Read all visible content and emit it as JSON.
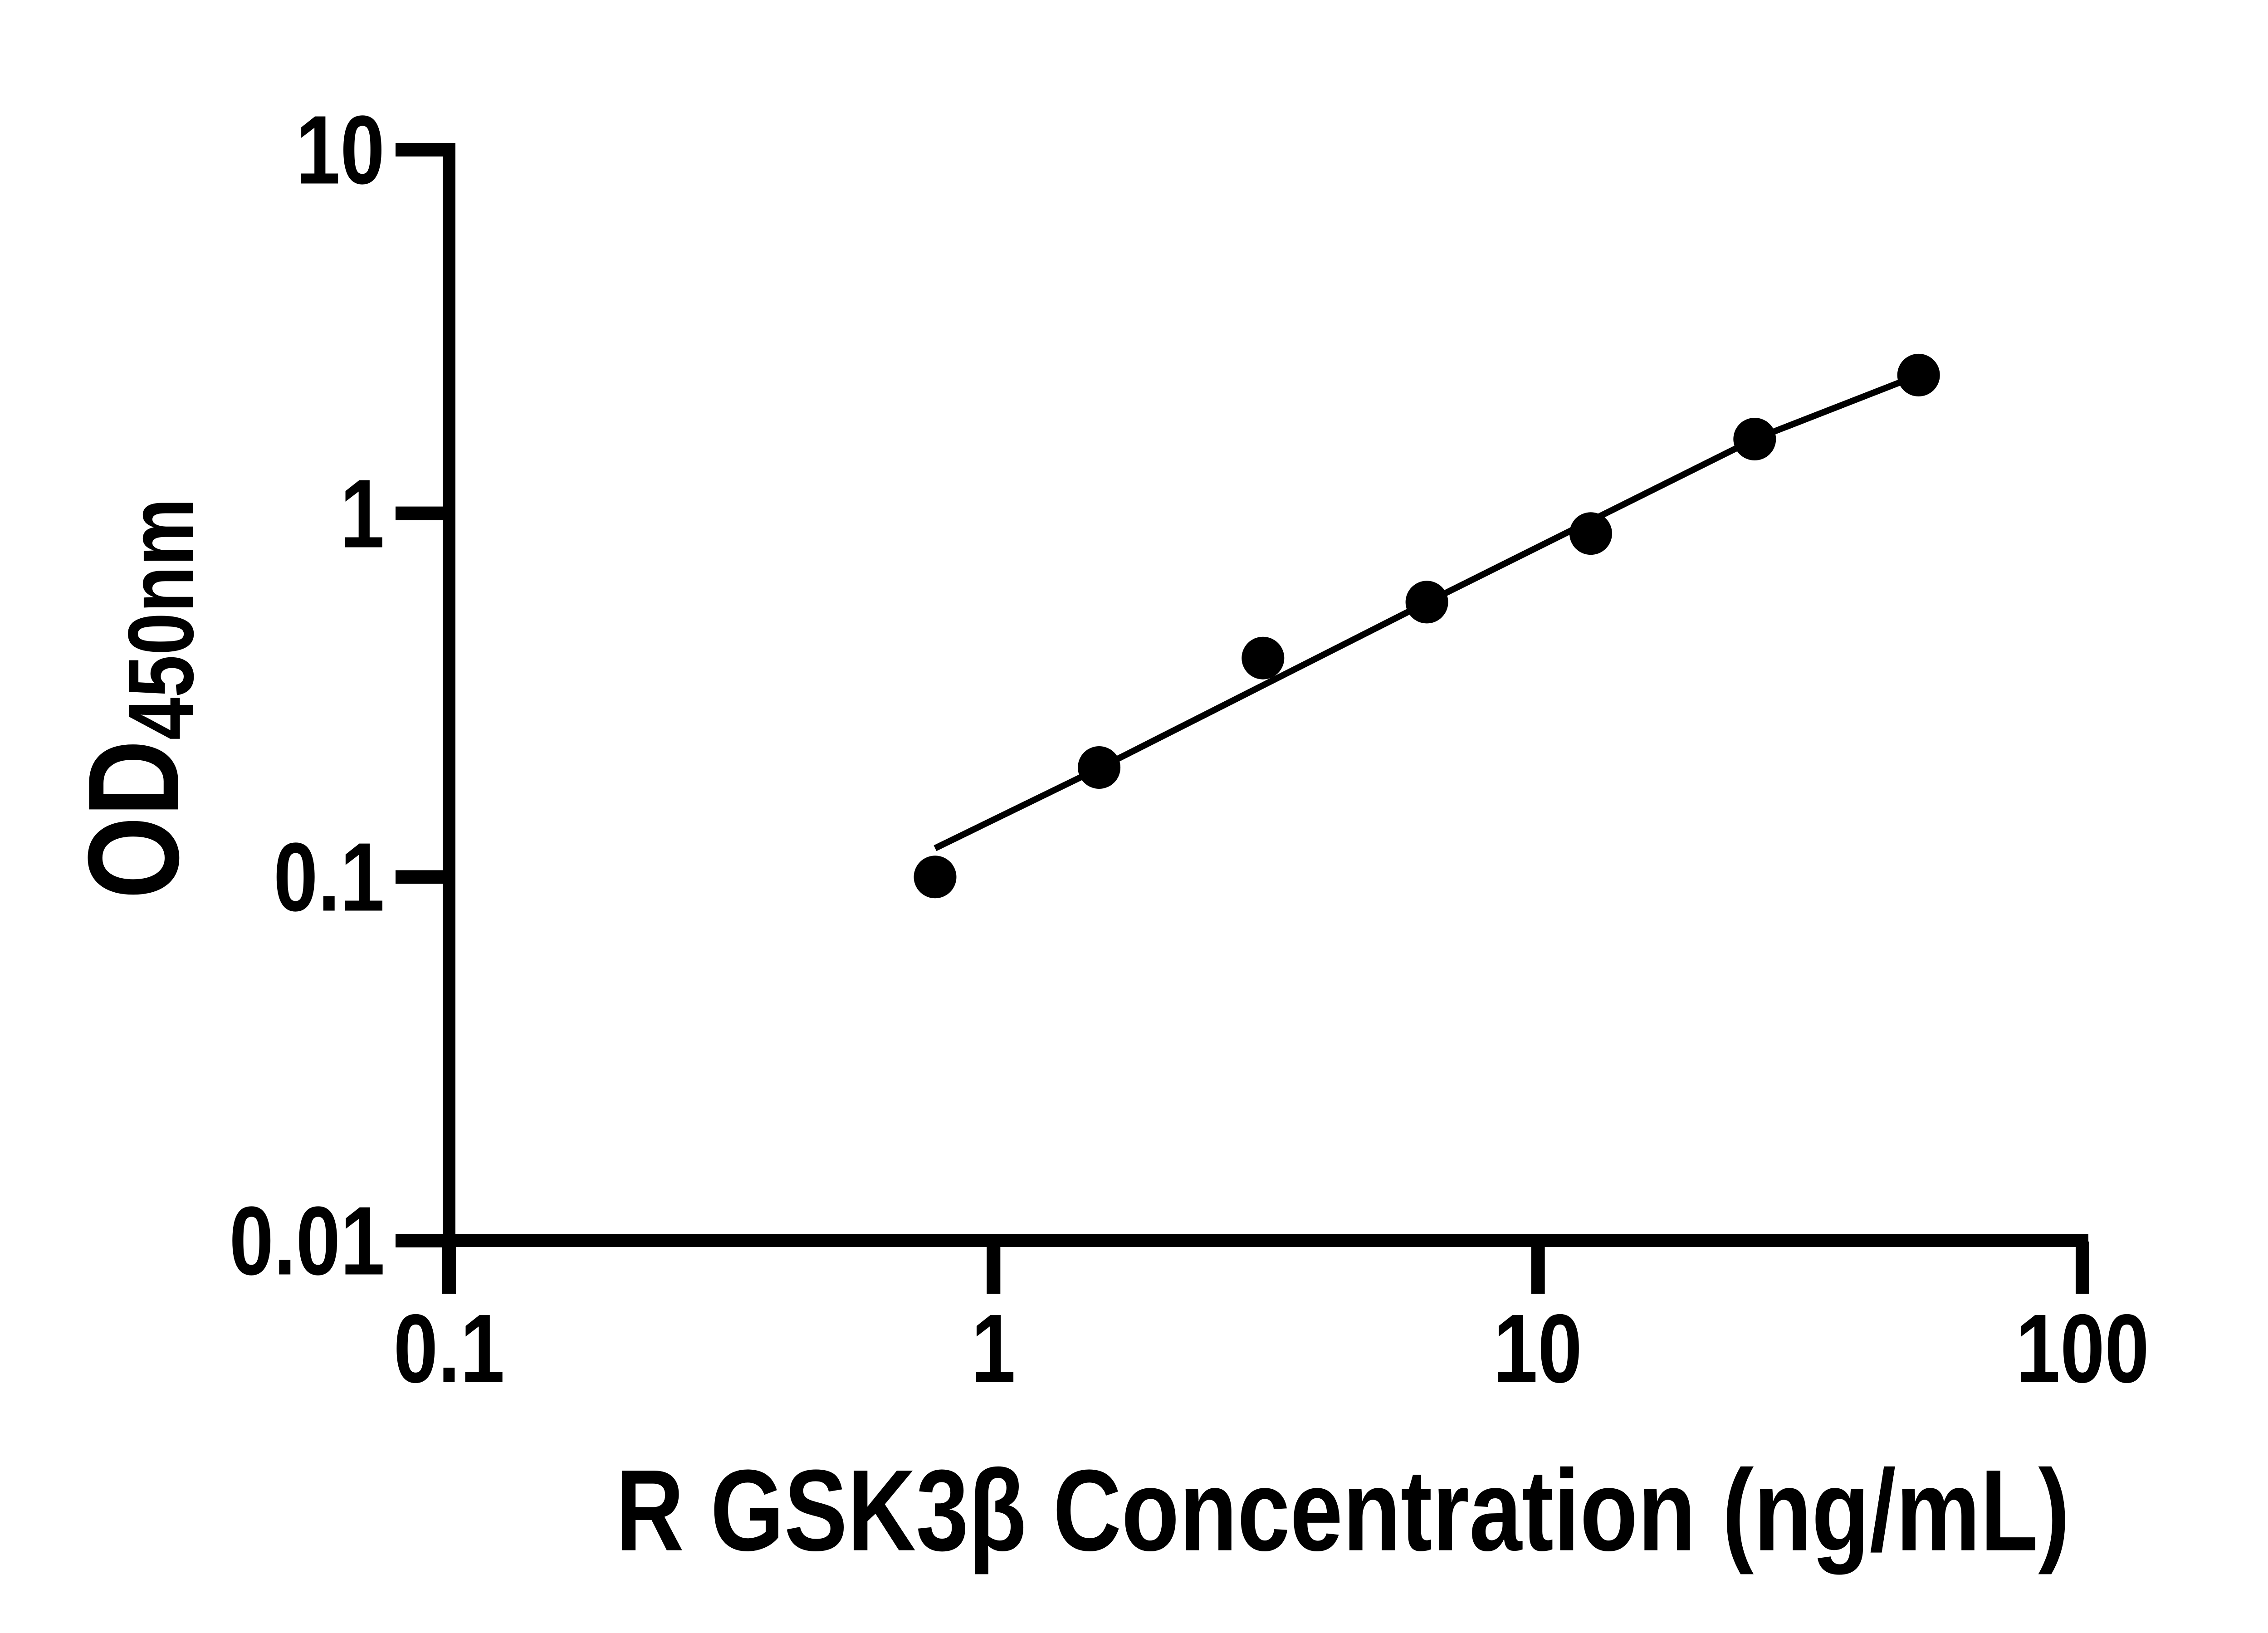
{
  "figure": {
    "background_color": "#ffffff",
    "ink_color": "#000000"
  },
  "chart_data": {
    "type": "scatter",
    "title": "",
    "xlabel": "R GSK3β Concentration (ng/mL)",
    "ylabel": "OD450nm",
    "ylabel_main": "OD",
    "ylabel_sub": "450nm",
    "x_scale": "log10",
    "y_scale": "log10",
    "xlim": [
      0.1,
      100
    ],
    "ylim": [
      0.01,
      10
    ],
    "grid": false,
    "legend": false,
    "x_ticks": {
      "values": [
        0.1,
        1,
        10,
        100
      ],
      "labels": [
        "0.1",
        "1",
        "10",
        "100"
      ]
    },
    "y_ticks": {
      "values": [
        10,
        1,
        0.1,
        0.01
      ],
      "labels": [
        "10",
        "1",
        "0.1",
        "0.01"
      ]
    },
    "series": [
      {
        "name": "standard-points",
        "type": "scatter",
        "marker": "filled-circle",
        "color": "#000000",
        "x": [
          0.781,
          1.563,
          3.125,
          6.25,
          12.5,
          25,
          50
        ],
        "y": [
          0.1,
          0.2,
          0.4,
          0.57,
          0.88,
          1.6,
          2.4
        ]
      },
      {
        "name": "fit-line",
        "type": "line",
        "color": "#000000",
        "x": [
          0.781,
          1.563,
          6.25,
          25,
          50
        ],
        "y": [
          0.12,
          0.199,
          0.569,
          1.6,
          2.4
        ]
      }
    ]
  }
}
